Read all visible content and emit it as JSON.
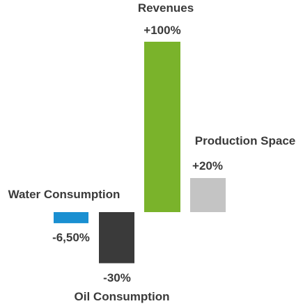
{
  "chart_data": {
    "type": "bar",
    "title": "",
    "xlabel": "",
    "ylabel": "",
    "ylim": [
      -30,
      100
    ],
    "grid": false,
    "legend": "none",
    "categories": [
      "Water Consumption",
      "Oil Consumption",
      "Revenues",
      "Production Space"
    ],
    "values": [
      -6.5,
      -30,
      100,
      20
    ],
    "value_labels": [
      "-6,50%",
      "-30%",
      "+100%",
      "+20%"
    ],
    "colors": [
      "#1a8fd1",
      "#3a3a3a",
      "#7ab32b",
      "#c4c4c4"
    ]
  }
}
